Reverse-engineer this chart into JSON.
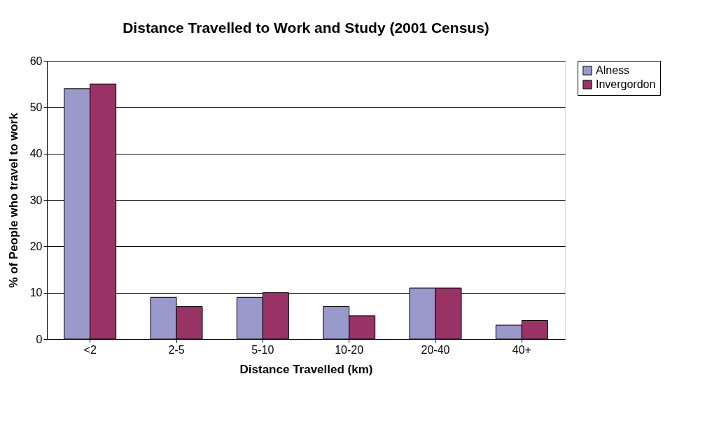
{
  "chart_data": {
    "type": "bar",
    "title": "Distance Travelled to Work and Study (2001 Census)",
    "xlabel": "Distance Travelled (km)",
    "ylabel": "% of People who travel to work",
    "categories": [
      "<2",
      "2-5",
      "5-10",
      "10-20",
      "20-40",
      "40+"
    ],
    "series": [
      {
        "name": "Alness",
        "color": "#9999cc",
        "values": [
          54,
          9,
          9,
          7,
          11,
          3
        ]
      },
      {
        "name": "Invergordon",
        "color": "#993366",
        "values": [
          55,
          7,
          10,
          5,
          11,
          4
        ]
      }
    ],
    "ylim": [
      0,
      60
    ],
    "yticks": [
      0,
      10,
      20,
      30,
      40,
      50,
      60
    ],
    "grid": "y",
    "legend": "right"
  }
}
